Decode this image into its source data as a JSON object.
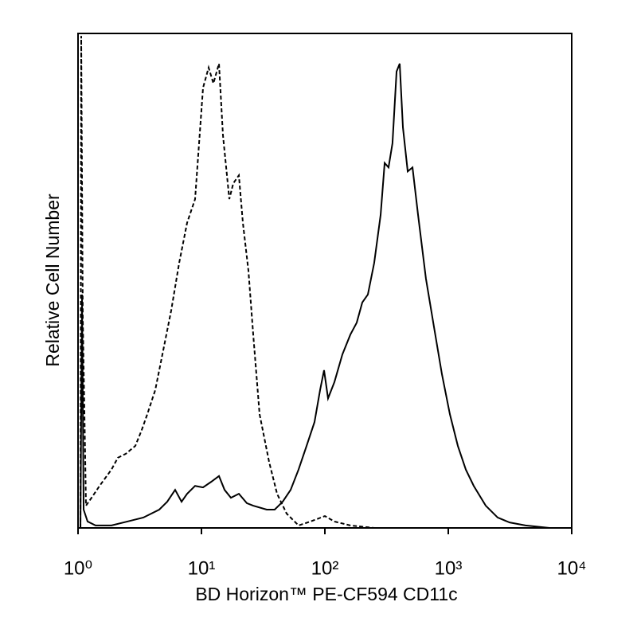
{
  "chart_data": {
    "type": "line",
    "x_label": "BD Horizon™ PE-CF594 CD11c",
    "y_label": "Relative Cell Number",
    "xscale": "log",
    "xlim": [
      1,
      10000
    ],
    "xticks": [
      {
        "value": 1,
        "label": "10⁰"
      },
      {
        "value": 10,
        "label": "10¹"
      },
      {
        "value": 100,
        "label": "10²"
      },
      {
        "value": 1000,
        "label": "10³"
      },
      {
        "value": 10000,
        "label": "10⁴"
      }
    ],
    "ylim": [
      0,
      100
    ],
    "series": [
      {
        "color": "#000000",
        "line_style": "solid",
        "x": [
          1.046,
          1.077,
          1.11,
          1.195,
          1.387,
          1.866,
          2.512,
          3.381,
          4.55,
          5.28,
          6.12,
          6.9,
          7.65,
          8.88,
          10.3,
          11.95,
          13.87,
          15.39,
          17.33,
          20.1,
          23.33,
          26.27,
          33.8,
          39.2,
          45.5,
          52.8,
          61.2,
          71.1,
          82.4,
          91.5,
          98.5,
          106.1,
          119.5,
          138.7,
          160.9,
          181.1,
          201,
          223,
          251,
          283,
          305,
          328,
          353,
          381,
          404,
          429,
          469,
          513,
          569,
          659,
          765,
          888,
          1030,
          1195,
          1387,
          1608,
          2010,
          2512,
          3140,
          4227,
          6600,
          10000
        ],
        "values": [
          0,
          47.2,
          3.7,
          1.3,
          0.5,
          0.5,
          1.3,
          2.1,
          3.7,
          5.3,
          7.7,
          5.3,
          6.9,
          8.5,
          8.2,
          9.3,
          10.5,
          7.7,
          6.1,
          6.9,
          5.0,
          4.5,
          3.7,
          3.7,
          5.3,
          7.7,
          11.8,
          16.6,
          21.4,
          27.9,
          31.9,
          26.2,
          29.5,
          35.1,
          39.1,
          41.5,
          45.6,
          47.2,
          53.6,
          63.3,
          73.8,
          72.9,
          77.8,
          92.3,
          93.9,
          81.0,
          72.1,
          72.9,
          63.3,
          50.4,
          40.7,
          31.1,
          23.0,
          16.6,
          11.8,
          8.5,
          4.5,
          2.1,
          1.1,
          0.5,
          0,
          0
        ]
      },
      {
        "color": "#000000",
        "line_style": "dashed",
        "x": [
          1.046,
          1.061,
          1.093,
          1.16,
          1.287,
          1.494,
          1.866,
          2.102,
          2.438,
          2.914,
          3.281,
          3.641,
          4.225,
          4.9,
          5.69,
          6.6,
          7.65,
          8.88,
          10.3,
          11.43,
          12.5,
          13.87,
          14.94,
          16.82,
          18.12,
          20.1,
          21.66,
          24.03,
          26.27,
          29.58,
          35.3,
          41.0,
          49.0,
          61.2,
          76.5,
          100,
          119.5,
          160.9,
          251,
          10000
        ],
        "values": [
          0,
          99.5,
          42.4,
          4.5,
          6.1,
          8.5,
          11.8,
          14.2,
          15.0,
          16.6,
          19.8,
          23.0,
          27.9,
          35.9,
          44.0,
          53.6,
          61.7,
          66.5,
          89.0,
          93.1,
          89.9,
          93.9,
          79.4,
          66.5,
          69.7,
          71.3,
          61.7,
          52.0,
          39.1,
          23.0,
          13.4,
          6.9,
          2.9,
          0.5,
          1.3,
          2.4,
          1.3,
          0.5,
          0,
          0
        ]
      }
    ]
  }
}
